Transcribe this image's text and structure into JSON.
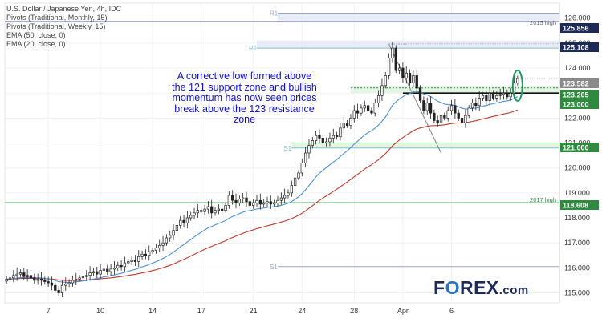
{
  "legend": {
    "line1": "U.S. Dollar / Japanese Yen, 4h, IDC",
    "line2": "Pivots (Traditional, Monthly, 15)",
    "line3": "Pivots (Traditional, Weekly, 15)",
    "line4": "EMA (50, close, 0)",
    "line5": "EMA (20, close, 0)"
  },
  "annotation": "A corrective low formed above the 121 support zone and bullish momentum has now seen prices break above the 123 resistance zone",
  "logo": {
    "part1": "F",
    "part2": "O",
    "part3": "REX",
    "part4": ".com"
  },
  "colors": {
    "candle": "#222222",
    "ema20": "#4a90d9",
    "ema50": "#c0392b",
    "support": "#2e8b3e",
    "navy": "#1b2a59",
    "price": "#8a8a8a",
    "circle": "#14a05a"
  },
  "chart_data": {
    "type": "candlestick",
    "symbol": "U.S. Dollar / Japanese Yen, 4h, IDC",
    "ylim": [
      114.6,
      126.6
    ],
    "y_ticks": [
      115.0,
      116.0,
      117.0,
      118.0,
      119.0,
      120.0,
      121.0,
      122.0,
      123.0,
      124.0,
      125.0,
      126.0
    ],
    "x_ticks": [
      "7",
      "10",
      "14",
      "17",
      "21",
      "24",
      "28",
      "Apr",
      "6"
    ],
    "price_levels": [
      {
        "value": 125.856,
        "label": "125.856",
        "note": "2015 high"
      },
      {
        "value": 125.108,
        "label": "125.108",
        "note": ""
      },
      {
        "value": 123.582,
        "label": "123.582",
        "note": ""
      },
      {
        "value": 123.205,
        "label": "123.205",
        "note": ""
      },
      {
        "value": 123.0,
        "label": "123.000",
        "note": ""
      },
      {
        "value": 121.0,
        "label": "121.000",
        "note": ""
      },
      {
        "value": 118.608,
        "label": "118.608",
        "note": "2017 high"
      }
    ],
    "pivots": [
      {
        "name": "R1",
        "value": 126.2
      },
      {
        "name": "R1",
        "value": 124.8
      },
      {
        "name": "S1",
        "value": 120.8
      },
      {
        "name": "S1",
        "value": 116.05
      }
    ],
    "closes": [
      115.55,
      115.6,
      115.7,
      115.75,
      115.8,
      115.65,
      115.7,
      115.6,
      115.5,
      115.55,
      115.5,
      115.45,
      115.4,
      115.3,
      115.1,
      115.0,
      115.3,
      115.35,
      115.4,
      115.5,
      115.55,
      115.6,
      115.65,
      115.7,
      115.8,
      115.85,
      115.75,
      115.9,
      115.95,
      115.85,
      115.95,
      116.0,
      116.1,
      116.05,
      116.2,
      116.25,
      116.3,
      116.25,
      116.45,
      116.55,
      116.5,
      116.65,
      116.7,
      116.8,
      116.9,
      117.0,
      117.2,
      117.3,
      117.5,
      117.7,
      117.9,
      117.8,
      118.0,
      118.1,
      118.2,
      118.3,
      118.25,
      118.35,
      118.45,
      118.2,
      118.3,
      118.35,
      118.3,
      118.5,
      118.9,
      118.7,
      118.6,
      118.75,
      118.8,
      118.65,
      118.5,
      118.6,
      118.7,
      118.55,
      118.6,
      118.65,
      118.55,
      118.6,
      118.7,
      118.8,
      118.9,
      119.0,
      119.3,
      119.6,
      119.8,
      120.2,
      120.6,
      120.9,
      121.1,
      121.3,
      121.2,
      121.0,
      121.05,
      121.2,
      121.3,
      121.25,
      121.6,
      121.8,
      121.7,
      122.0,
      122.3,
      122.2,
      122.4,
      122.5,
      122.3,
      122.2,
      122.6,
      122.9,
      123.3,
      123.7,
      124.4,
      124.8,
      123.9,
      124.0,
      123.6,
      123.8,
      123.4,
      123.7,
      123.2,
      122.7,
      122.3,
      122.6,
      122.2,
      121.9,
      121.8,
      122.1,
      122.0,
      122.3,
      122.5,
      122.2,
      122.0,
      121.8,
      122.1,
      122.4,
      122.6,
      122.5,
      122.8,
      122.9,
      122.7,
      123.0,
      122.8,
      122.9,
      122.95,
      123.0,
      122.85,
      123.0,
      123.4,
      123.582
    ]
  }
}
